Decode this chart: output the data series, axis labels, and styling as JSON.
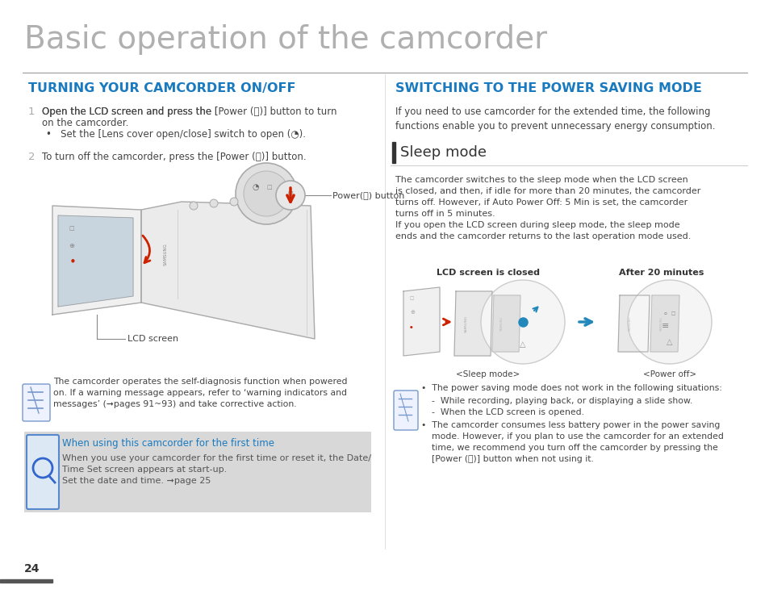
{
  "title": "Basic operation of the camcorder",
  "title_color": "#b0b0b0",
  "title_fontsize": 28,
  "section1_heading": "TURNING YOUR CAMCORDER ON/OFF",
  "section2_heading": "SWITCHING TO THE POWER SAVING MODE",
  "heading_color": "#1a7abf",
  "heading_fontsize": 11.5,
  "body_color": "#444444",
  "body_fontsize": 8.5,
  "bg_color": "#ffffff",
  "page_number": "24",
  "tip_bg": "#d8d8d8",
  "note1": "The camcorder operates the self-diagnosis function when powered\non. If a warning message appears, refer to ‘warning indicators and\nmessages’ (➞pages 91~93) and take corrective action.",
  "tip_heading": "When using this camcorder for the first time",
  "tip_body": "When you use your camcorder for the first time or reset it, the Date/\nTime Set screen appears at start-up.\nSet the date and time. ➞page 25",
  "sleep_intro": "If you need to use camcorder for the extended time, the following\nfunctions enable you to prevent unnecessary energy consumption.",
  "sleep_subheading": "Sleep mode",
  "sleep_body1": "The camcorder switches to the sleep mode when the LCD screen\nis closed, and then, if idle for more than 20 minutes, the camcorder\nturns off. However, if Auto Power Off: 5 Min is set, the camcorder\nturns off in 5 minutes.\nIf you open the LCD screen during sleep mode, the sleep mode\nends and the camcorder returns to the last operation mode used.",
  "lcd_closed_label": "LCD screen is closed",
  "after_label": "After 20 minutes",
  "sleep_mode_label": "<Sleep mode>",
  "power_off_label": "<Power off>",
  "lcd_label": "LCD screen",
  "power_label": "Power(⏻) button"
}
